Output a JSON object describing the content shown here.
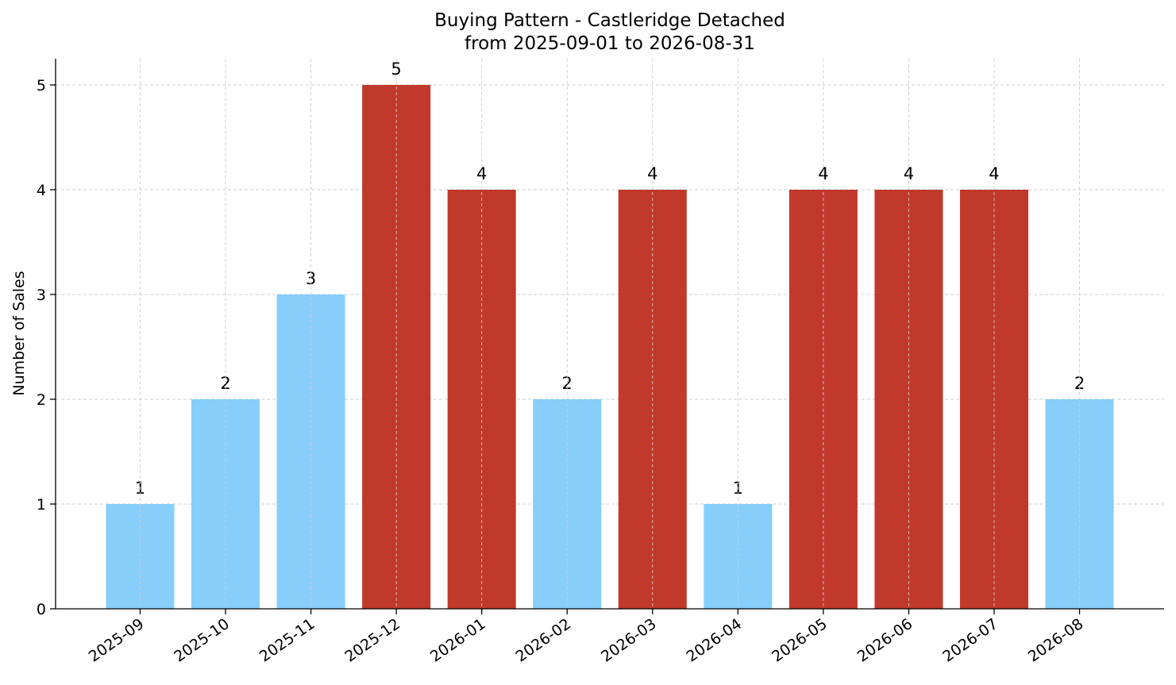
{
  "chart_data": {
    "type": "bar",
    "title": "Buying Pattern - Castleridge Detached",
    "subtitle": "from 2025-09-01 to 2026-08-31",
    "xlabel": "",
    "ylabel": "Number of Sales",
    "categories": [
      "2025-09",
      "2025-10",
      "2025-11",
      "2025-12",
      "2026-01",
      "2026-02",
      "2026-03",
      "2026-04",
      "2026-05",
      "2026-06",
      "2026-07",
      "2026-08"
    ],
    "values": [
      1,
      2,
      3,
      5,
      4,
      2,
      4,
      1,
      4,
      4,
      4,
      2
    ],
    "highlight_threshold": 4,
    "colors": {
      "high": "#c0392b",
      "normal": "#87cefa"
    },
    "ylim": [
      0,
      5.25
    ],
    "yticks": [
      0,
      1,
      2,
      3,
      4,
      5
    ],
    "grid": true,
    "data_labels": true
  }
}
